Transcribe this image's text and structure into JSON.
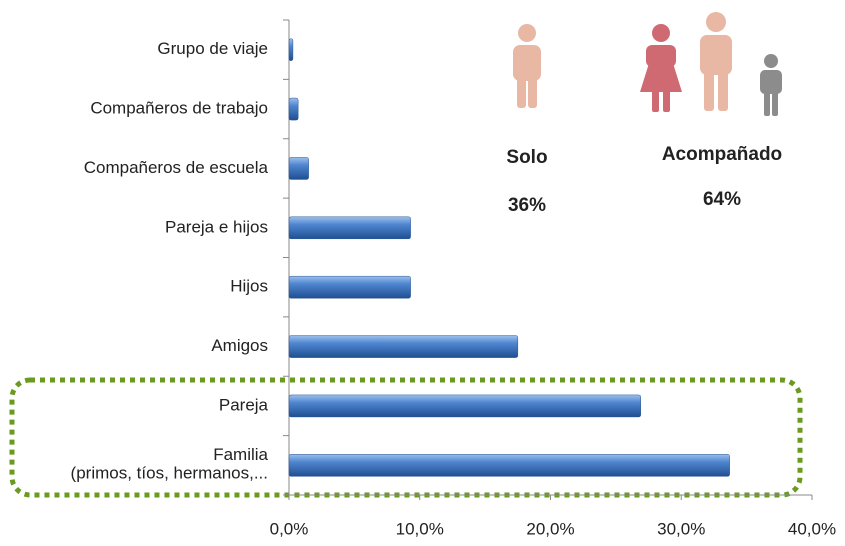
{
  "chart_data": {
    "type": "bar",
    "orientation": "horizontal",
    "categories": [
      "Grupo de viaje",
      "Compañeros de trabajo",
      "Compañeros de escuela",
      "Pareja e hijos",
      "Hijos",
      "Amigos",
      "Pareja",
      "Familia\n(primos, tíos, hermanos,..."
    ],
    "values": [
      0.3,
      0.7,
      1.5,
      9.3,
      9.3,
      17.5,
      26.9,
      33.7
    ],
    "color": "#3f74bf",
    "xlim": [
      0,
      40
    ],
    "xticks": [
      {
        "value": 0,
        "label": "0,0%"
      },
      {
        "value": 10,
        "label": "10,0%"
      },
      {
        "value": 20,
        "label": "20,0%"
      },
      {
        "value": 30,
        "label": "30,0%"
      },
      {
        "value": 40,
        "label": "40,0%"
      }
    ],
    "annotations": [
      {
        "text": "Solo"
      },
      {
        "text": "36%"
      },
      {
        "text": "Acompañado"
      },
      {
        "text": "64%"
      }
    ]
  }
}
